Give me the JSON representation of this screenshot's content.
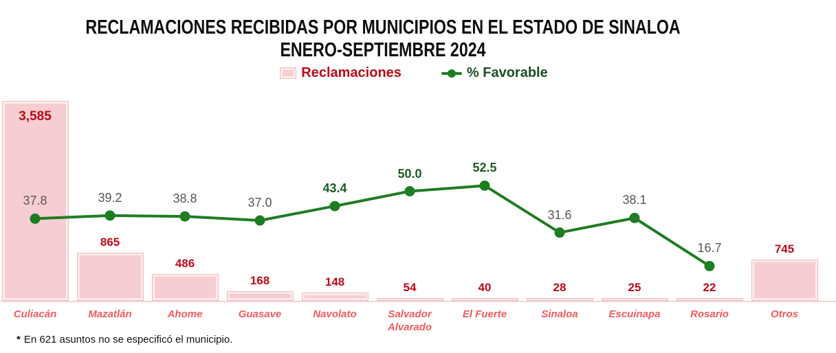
{
  "header": {
    "title_line1": "RECLAMACIONES RECIBIDAS POR MUNICIPIOS EN EL ESTADO DE SINALOA",
    "title_line2": "ENERO-SEPTIEMBRE 2024"
  },
  "legend": {
    "bars_label": "Reclamaciones",
    "line_label": "% Favorable"
  },
  "footnote": {
    "marker": "*",
    "text": "En 621 asuntos no se especificó el municipio."
  },
  "colors": {
    "bar_fill": "#f6ced2",
    "bar_border": "#f1b9bd",
    "bar_bevel": "#fdeaec",
    "bar_value_red": "#bd0a18",
    "category_red": "#f05c5e",
    "line_green": "#1e7d23",
    "line_label_green": "#1d5a22",
    "line_label_gray": "#565656",
    "legend_green": "#1a4d20",
    "axis_line": "#f3d5d6",
    "title_black": "#0e0e0e"
  },
  "chart_data": {
    "type": "bar",
    "subtype": "combo-bar-line",
    "title": "RECLAMACIONES RECIBIDAS POR MUNICIPIOS EN EL ESTADO DE SINALOA",
    "subtitle": "ENERO-SEPTIEMBRE 2024",
    "categories": [
      "Culiacán",
      "Mazatlán",
      "Ahome",
      "Guasave",
      "Navolato",
      "Salvador Alvarado",
      "El Fuerte",
      "Sinaloa",
      "Escuinapa",
      "Rosario",
      "Otros"
    ],
    "series": [
      {
        "name": "Reclamaciones",
        "type": "bar",
        "values": [
          3585,
          865,
          486,
          168,
          148,
          54,
          40,
          28,
          25,
          22,
          745
        ],
        "labels": [
          "3,585",
          "865",
          "486",
          "168",
          "148",
          "54",
          "40",
          "28",
          "25",
          "22",
          "745"
        ]
      },
      {
        "name": "% Favorable",
        "type": "line",
        "values": [
          37.8,
          39.2,
          38.8,
          37.0,
          43.4,
          50.0,
          52.5,
          31.6,
          38.1,
          16.7,
          null
        ],
        "labels": [
          "37.8",
          "39.2",
          "38.8",
          "37.0",
          "43.4",
          "50.0",
          "52.5",
          "31.6",
          "38.1",
          "16.7",
          ""
        ],
        "emphasized_labels": [
          false,
          false,
          false,
          false,
          true,
          true,
          true,
          false,
          false,
          false,
          false
        ]
      }
    ],
    "ylabel": "",
    "xlabel": "",
    "grid": false,
    "legend_position": "top",
    "footnote": "* En 621 asuntos no se especificó el municipio."
  }
}
